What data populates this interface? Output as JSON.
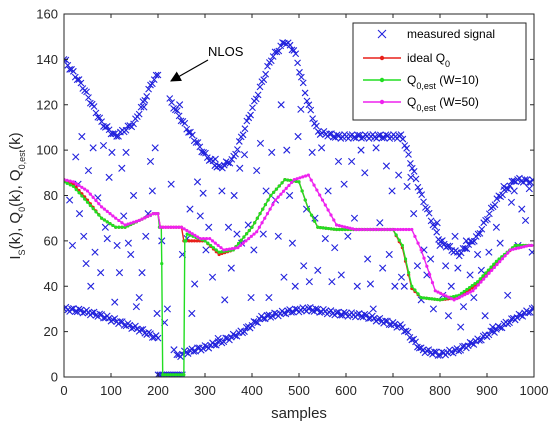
{
  "chart_data": {
    "type": "line",
    "xlabel": "samples",
    "ylabel": "I_S(k), Q_0(k), Q_0,est(k)",
    "ylabel_parts": [
      "I",
      "S",
      "(k), Q",
      "0",
      "(k), Q",
      "0,est",
      "(k)"
    ],
    "xlim": [
      0,
      1000
    ],
    "ylim": [
      0,
      160
    ],
    "x_ticks": [
      0,
      100,
      200,
      300,
      400,
      500,
      600,
      700,
      800,
      900,
      1000
    ],
    "y_ticks": [
      0,
      20,
      40,
      60,
      80,
      100,
      120,
      140,
      160
    ],
    "grid": false,
    "legend_position": "top-right",
    "annotation": {
      "text": "NLOS",
      "points_to": [
        178,
        122
      ]
    },
    "series": [
      {
        "name": "measured signal",
        "legend_parts": [
          "measured signal"
        ],
        "marker": "x",
        "color": "#2222dd",
        "bands": [
          {
            "role": "upper",
            "segments": [
              [
                [
                  0,
                  140
                ],
                [
                  40,
                  128
                ],
                [
                  80,
                  112
                ],
                [
                  110,
                  106
                ],
                [
                  150,
                  112
                ],
                [
                  190,
                  131
                ],
                [
                  200,
                  133
                ]
              ],
              [
                [
                  225,
                  122
                ],
                [
                  260,
                  110
                ],
                [
                  300,
                  98
                ],
                [
                  330,
                  92
                ],
                [
                  360,
                  96
                ],
                [
                  400,
                  118
                ],
                [
                  440,
                  140
                ],
                [
                  470,
                  148
                ],
                [
                  490,
                  144
                ],
                [
                  520,
                  120
                ],
                [
                  540,
                  108
                ],
                [
                  580,
                  106
                ],
                [
                  720,
                  106
                ],
                [
                  760,
                  80
                ],
                [
                  800,
                  60
                ],
                [
                  840,
                  54
                ],
                [
                  880,
                  62
                ],
                [
                  920,
                  78
                ],
                [
                  960,
                  87
                ],
                [
                  1000,
                  86
                ]
              ]
            ]
          },
          {
            "role": "lower",
            "segments": [
              [
                [
                  0,
                  30
                ],
                [
                  40,
                  29
                ],
                [
                  80,
                  27
                ],
                [
                  120,
                  24
                ],
                [
                  160,
                  21
                ],
                [
                  200,
                  17
                ]
              ],
              [
                [
                  240,
                  9
                ],
                [
                  260,
                  11
                ],
                [
                  300,
                  13
                ],
                [
                  340,
                  16
                ],
                [
                  380,
                  20
                ],
                [
                  420,
                  26
                ],
                [
                  480,
                  29
                ],
                [
                  520,
                  30
                ],
                [
                  580,
                  28
                ],
                [
                  640,
                  27
                ],
                [
                  720,
                  22
                ],
                [
                  760,
                  12
                ],
                [
                  800,
                  10
                ],
                [
                  840,
                  12
                ],
                [
                  880,
                  16
                ],
                [
                  920,
                  21
                ],
                [
                  960,
                  26
                ],
                [
                  1000,
                  30
                ]
              ]
            ]
          },
          {
            "role": "nlos-floor",
            "segments": [
              [
                [
                  200,
                  1
                ],
                [
                  255,
                  1
                ]
              ]
            ]
          }
        ],
        "scatter": [
          [
            12,
            78
          ],
          [
            18,
            58
          ],
          [
            25,
            97
          ],
          [
            30,
            85
          ],
          [
            33,
            72
          ],
          [
            38,
            106
          ],
          [
            42,
            62
          ],
          [
            47,
            50
          ],
          [
            52,
            91
          ],
          [
            57,
            40
          ],
          [
            62,
            101
          ],
          [
            66,
            55
          ],
          [
            72,
            79
          ],
          [
            78,
            46
          ],
          [
            84,
            102
          ],
          [
            88,
            66
          ],
          [
            92,
            61
          ],
          [
            96,
            88
          ],
          [
            102,
            99
          ],
          [
            108,
            33
          ],
          [
            113,
            58
          ],
          [
            118,
            46
          ],
          [
            123,
            92
          ],
          [
            127,
            71
          ],
          [
            132,
            99
          ],
          [
            137,
            59
          ],
          [
            142,
            54
          ],
          [
            148,
            80
          ],
          [
            154,
            31
          ],
          [
            160,
            35
          ],
          [
            166,
            46
          ],
          [
            170,
            119
          ],
          [
            174,
            62
          ],
          [
            179,
            72
          ],
          [
            184,
            95
          ],
          [
            188,
            82
          ],
          [
            194,
            101
          ],
          [
            198,
            28
          ],
          [
            208,
            60
          ],
          [
            214,
            24
          ],
          [
            220,
            30
          ],
          [
            228,
            85
          ],
          [
            234,
            12
          ],
          [
            246,
            120
          ],
          [
            252,
            54
          ],
          [
            262,
            61
          ],
          [
            268,
            74
          ],
          [
            272,
            28
          ],
          [
            278,
            41
          ],
          [
            284,
            86
          ],
          [
            290,
            71
          ],
          [
            296,
            81
          ],
          [
            302,
            56
          ],
          [
            308,
            66
          ],
          [
            316,
            44
          ],
          [
            322,
            96
          ],
          [
            328,
            17
          ],
          [
            336,
            82
          ],
          [
            342,
            34
          ],
          [
            350,
            66
          ],
          [
            356,
            48
          ],
          [
            362,
            80
          ],
          [
            368,
            63
          ],
          [
            374,
            92
          ],
          [
            378,
            59
          ],
          [
            384,
            98
          ],
          [
            392,
            67
          ],
          [
            398,
            35
          ],
          [
            404,
            56
          ],
          [
            410,
            91
          ],
          [
            418,
            103
          ],
          [
            424,
            63
          ],
          [
            430,
            82
          ],
          [
            436,
            35
          ],
          [
            442,
            99
          ],
          [
            450,
            78
          ],
          [
            456,
            62
          ],
          [
            462,
            120
          ],
          [
            468,
            44
          ],
          [
            474,
            100
          ],
          [
            480,
            80
          ],
          [
            486,
            59
          ],
          [
            492,
            40
          ],
          [
            498,
            106
          ],
          [
            504,
            118
          ],
          [
            510,
            49
          ],
          [
            516,
            74
          ],
          [
            522,
            42
          ],
          [
            528,
            99
          ],
          [
            534,
            70
          ],
          [
            540,
            47
          ],
          [
            548,
            101
          ],
          [
            556,
            61
          ],
          [
            562,
            82
          ],
          [
            570,
            42
          ],
          [
            576,
            57
          ],
          [
            584,
            95
          ],
          [
            590,
            45
          ],
          [
            596,
            85
          ],
          [
            604,
            62
          ],
          [
            612,
            95
          ],
          [
            618,
            70
          ],
          [
            624,
            40
          ],
          [
            632,
            100
          ],
          [
            640,
            90
          ],
          [
            646,
            52
          ],
          [
            652,
            41
          ],
          [
            658,
            30
          ],
          [
            664,
            101
          ],
          [
            672,
            68
          ],
          [
            678,
            48
          ],
          [
            686,
            93
          ],
          [
            692,
            54
          ],
          [
            698,
            82
          ],
          [
            704,
            40
          ],
          [
            712,
            89
          ],
          [
            718,
            44
          ],
          [
            724,
            40
          ],
          [
            730,
            84
          ],
          [
            738,
            88
          ],
          [
            744,
            72
          ],
          [
            752,
            49
          ],
          [
            760,
            34
          ],
          [
            766,
            56
          ],
          [
            772,
            45
          ],
          [
            780,
            52
          ],
          [
            786,
            30
          ],
          [
            794,
            68
          ],
          [
            800,
            58
          ],
          [
            806,
            36
          ],
          [
            812,
            49
          ],
          [
            818,
            27
          ],
          [
            824,
            40
          ],
          [
            832,
            62
          ],
          [
            838,
            48
          ],
          [
            844,
            22
          ],
          [
            850,
            31
          ],
          [
            856,
            60
          ],
          [
            864,
            45
          ],
          [
            872,
            35
          ],
          [
            880,
            54
          ],
          [
            888,
            47
          ],
          [
            896,
            27
          ],
          [
            904,
            55
          ],
          [
            912,
            22
          ],
          [
            920,
            66
          ],
          [
            928,
            59
          ],
          [
            936,
            84
          ],
          [
            944,
            36
          ],
          [
            952,
            77
          ],
          [
            958,
            82
          ],
          [
            966,
            58
          ],
          [
            974,
            74
          ],
          [
            982,
            69
          ],
          [
            990,
            83
          ],
          [
            996,
            55
          ]
        ]
      },
      {
        "name": "ideal Q_0",
        "legend_parts": [
          "ideal Q",
          "0",
          ""
        ],
        "color": "#e8201a",
        "x": [
          0,
          20,
          50,
          80,
          110,
          130,
          160,
          190,
          200,
          205,
          250,
          255,
          300,
          330,
          360,
          400,
          440,
          470,
          500,
          520,
          540,
          580,
          700,
          720,
          740,
          760,
          800,
          840,
          880,
          920,
          960,
          1000
        ],
        "values": [
          87,
          85,
          78,
          70,
          66,
          66,
          69,
          72,
          72,
          66,
          66,
          60,
          60,
          54,
          56,
          66,
          80,
          87,
          86,
          74,
          66,
          65,
          65,
          57,
          39,
          35,
          34,
          35,
          41,
          50,
          58,
          58
        ]
      },
      {
        "name": "Q_0,est (W=10)",
        "legend_parts": [
          "Q",
          "0,est",
          " (W=10)"
        ],
        "color": "#22dd22",
        "x": [
          0,
          20,
          50,
          80,
          110,
          130,
          160,
          190,
          200,
          203,
          207,
          208,
          210,
          255,
          257,
          259,
          262,
          300,
          330,
          360,
          400,
          440,
          470,
          500,
          520,
          540,
          580,
          700,
          720,
          740,
          760,
          800,
          840,
          880,
          920,
          960,
          1000
        ],
        "values": [
          86,
          84,
          77,
          70,
          66,
          66,
          69,
          72,
          72,
          66,
          66,
          50,
          1,
          1,
          60,
          60,
          63,
          60,
          55,
          56,
          66,
          80,
          87,
          86,
          74,
          66,
          65,
          65,
          58,
          40,
          35,
          34,
          36,
          42,
          51,
          58,
          58
        ]
      },
      {
        "name": "Q_0,est (W=50)",
        "legend_parts": [
          "Q",
          "0,est",
          " (W=50)"
        ],
        "color": "#ee22ee",
        "x": [
          0,
          20,
          50,
          80,
          110,
          130,
          160,
          190,
          200,
          205,
          250,
          290,
          310,
          340,
          370,
          410,
          450,
          490,
          520,
          550,
          580,
          620,
          740,
          760,
          790,
          830,
          870,
          910,
          950,
          990,
          1000
        ],
        "values": [
          87,
          86,
          82,
          75,
          70,
          67,
          69,
          72,
          72,
          66,
          66,
          61,
          61,
          56,
          57,
          64,
          78,
          87,
          89,
          78,
          67,
          65,
          65,
          56,
          38,
          34,
          38,
          47,
          56,
          58,
          58
        ]
      }
    ]
  }
}
